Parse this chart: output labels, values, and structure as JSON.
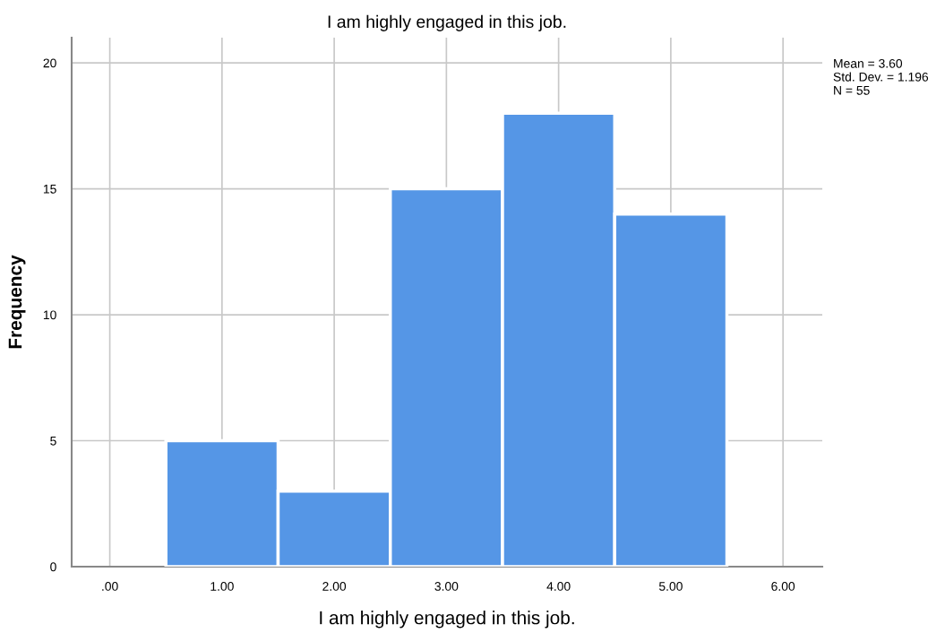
{
  "chart_data": {
    "type": "histogram",
    "title": "I am highly engaged in this job.",
    "xlabel": "I am highly engaged in this job.",
    "ylabel": "Frequency",
    "bins": [
      0.5,
      1.5,
      2.5,
      3.5,
      4.5,
      5.5
    ],
    "values": [
      5,
      3,
      15,
      18,
      14
    ],
    "color": "#5596e6",
    "xlim": [
      -0.34,
      6.35
    ],
    "xticks": [
      {
        "value": 0,
        "label": ".00"
      },
      {
        "value": 1,
        "label": "1.00"
      },
      {
        "value": 2,
        "label": "2.00"
      },
      {
        "value": 3,
        "label": "3.00"
      },
      {
        "value": 4,
        "label": "4.00"
      },
      {
        "value": 5,
        "label": "5.00"
      },
      {
        "value": 6,
        "label": "6.00"
      }
    ],
    "ylim": [
      0,
      21
    ],
    "yticks": [
      0,
      5,
      10,
      15,
      20
    ],
    "grid": true,
    "annotations": [
      "Mean = 3.60",
      "Std. Dev. = 1.196",
      "N = 55"
    ]
  }
}
